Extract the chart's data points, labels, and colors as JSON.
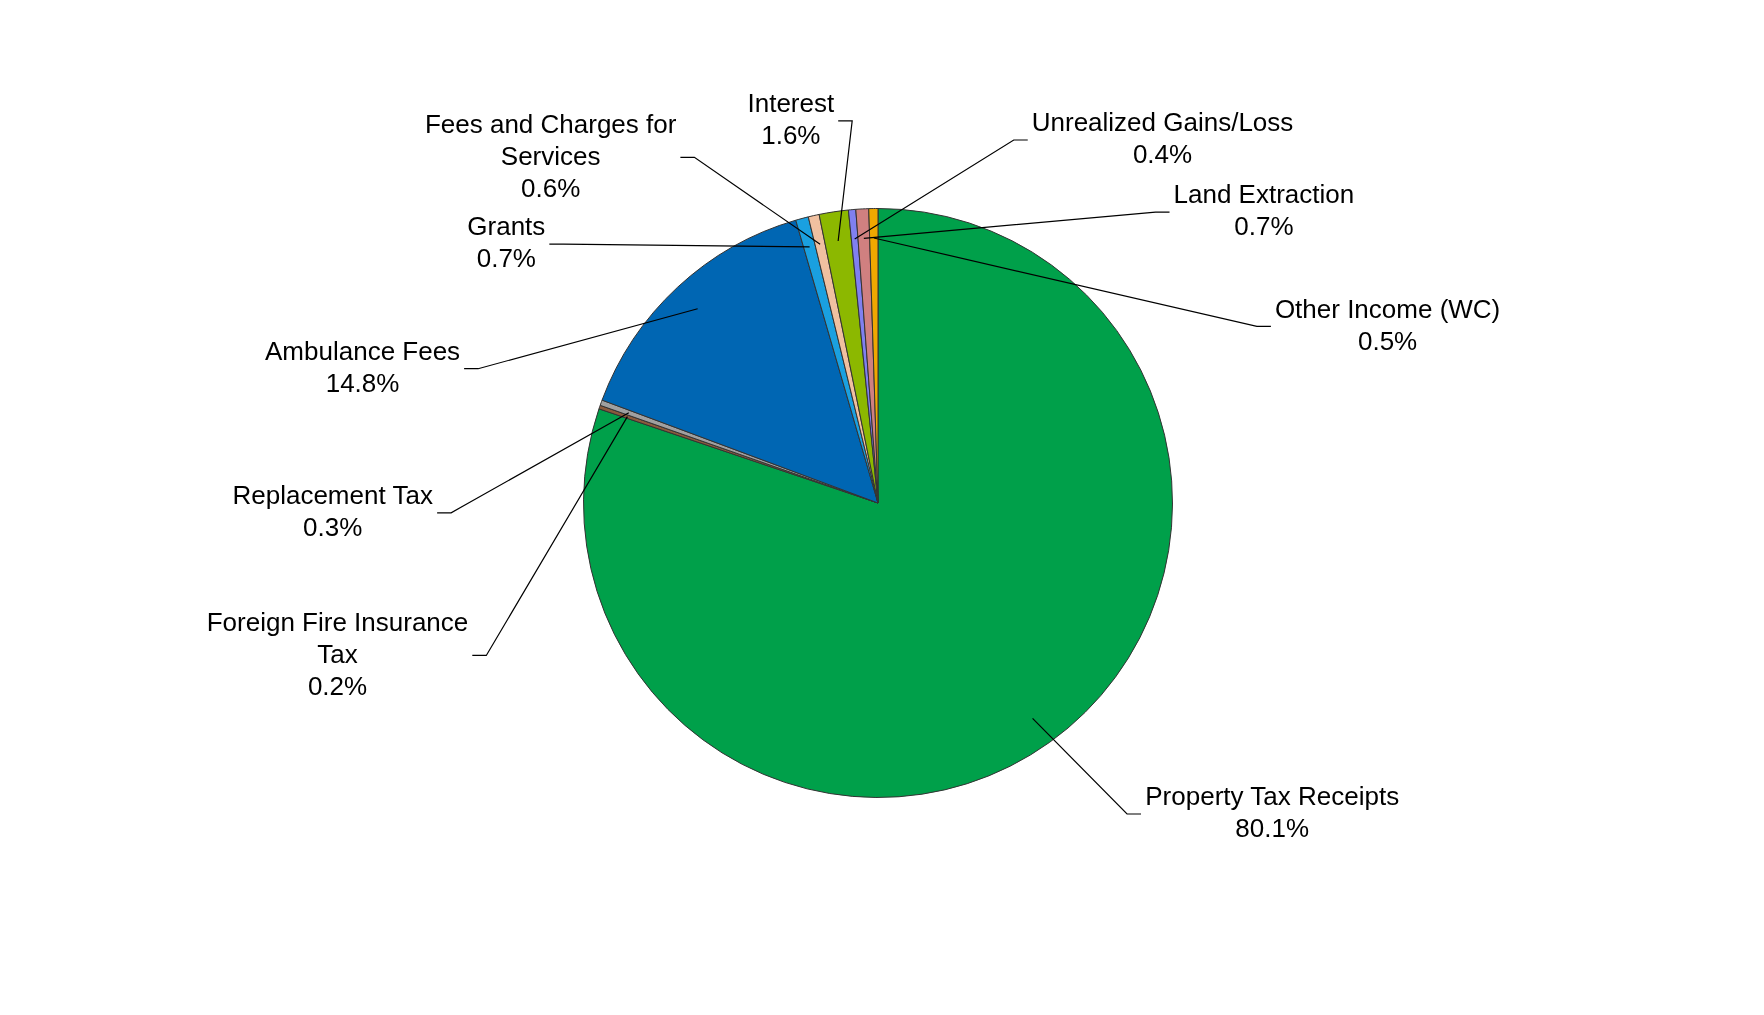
{
  "chart_data": {
    "type": "pie",
    "categories": [
      "Property Tax Receipts",
      "Foreign Fire Insurance Tax",
      "Replacement Tax",
      "Ambulance Fees",
      "Grants",
      "Fees and Charges for Services",
      "Interest",
      "Unrealized Gains/Loss",
      "Land Extraction",
      "Other Income (WC)"
    ],
    "values": [
      80.1,
      0.2,
      0.3,
      14.8,
      0.7,
      0.6,
      1.6,
      0.4,
      0.7,
      0.5
    ],
    "value_labels": [
      "80.1%",
      "0.2%",
      "0.3%",
      "14.8%",
      "0.7%",
      "0.6%",
      "1.6%",
      "0.4%",
      "0.7%",
      "0.5%"
    ],
    "colors": [
      "#00a04a",
      "#8b5a3c",
      "#a0a0a0",
      "#0066b3",
      "#1aa0e0",
      "#f0c0a0",
      "#8cb800",
      "#8080f0",
      "#d08080",
      "#f0a800"
    ],
    "legend": false
  }
}
